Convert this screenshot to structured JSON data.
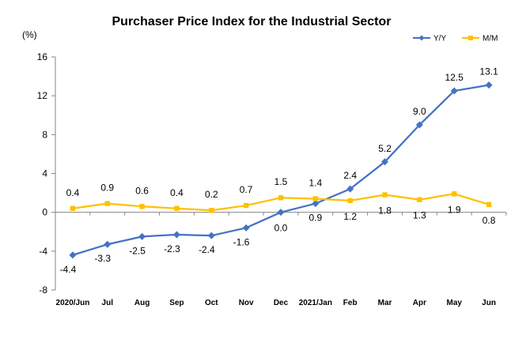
{
  "chart_data": {
    "type": "line",
    "title": "Purchaser Price Index for the Industrial  Sector",
    "ylabel": "(%)",
    "xlabel": "",
    "ylim": [
      -8,
      16
    ],
    "yticks": [
      "16",
      "12",
      "8",
      "4",
      "0",
      "-4",
      "-8"
    ],
    "ytick_values": [
      16,
      12,
      8,
      4,
      0,
      -4,
      -8
    ],
    "categories": [
      "2020/Jun",
      "Jul",
      "Aug",
      "Sep",
      "Oct",
      "Nov",
      "Dec",
      "2021/Jan",
      "Feb",
      "Mar",
      "Apr",
      "May",
      "Jun"
    ],
    "grid": false,
    "legend_position": "top-right",
    "series": [
      {
        "name": "Y/Y",
        "color": "#4472C4",
        "marker": "diamond",
        "values": [
          -4.4,
          -3.3,
          -2.5,
          -2.3,
          -2.4,
          -1.6,
          0.0,
          0.9,
          2.4,
          5.2,
          9.0,
          12.5,
          13.1
        ],
        "labels": [
          "-4.4",
          "-3.3",
          "-2.5",
          "-2.3",
          "-2.4",
          "-1.6",
          "0.0",
          "0.9",
          "2.4",
          "5.2",
          "9.0",
          "12.5",
          "13.1"
        ]
      },
      {
        "name": "M/M",
        "color": "#FFC000",
        "marker": "square",
        "values": [
          0.4,
          0.9,
          0.6,
          0.4,
          0.2,
          0.7,
          1.5,
          1.4,
          1.2,
          1.8,
          1.3,
          1.9,
          0.8
        ],
        "labels": [
          "0.4",
          "0.9",
          "0.6",
          "0.4",
          "0.2",
          "0.7",
          "1.5",
          "1.4",
          "1.2",
          "1.8",
          "1.3",
          "1.9",
          "0.8"
        ]
      }
    ]
  }
}
